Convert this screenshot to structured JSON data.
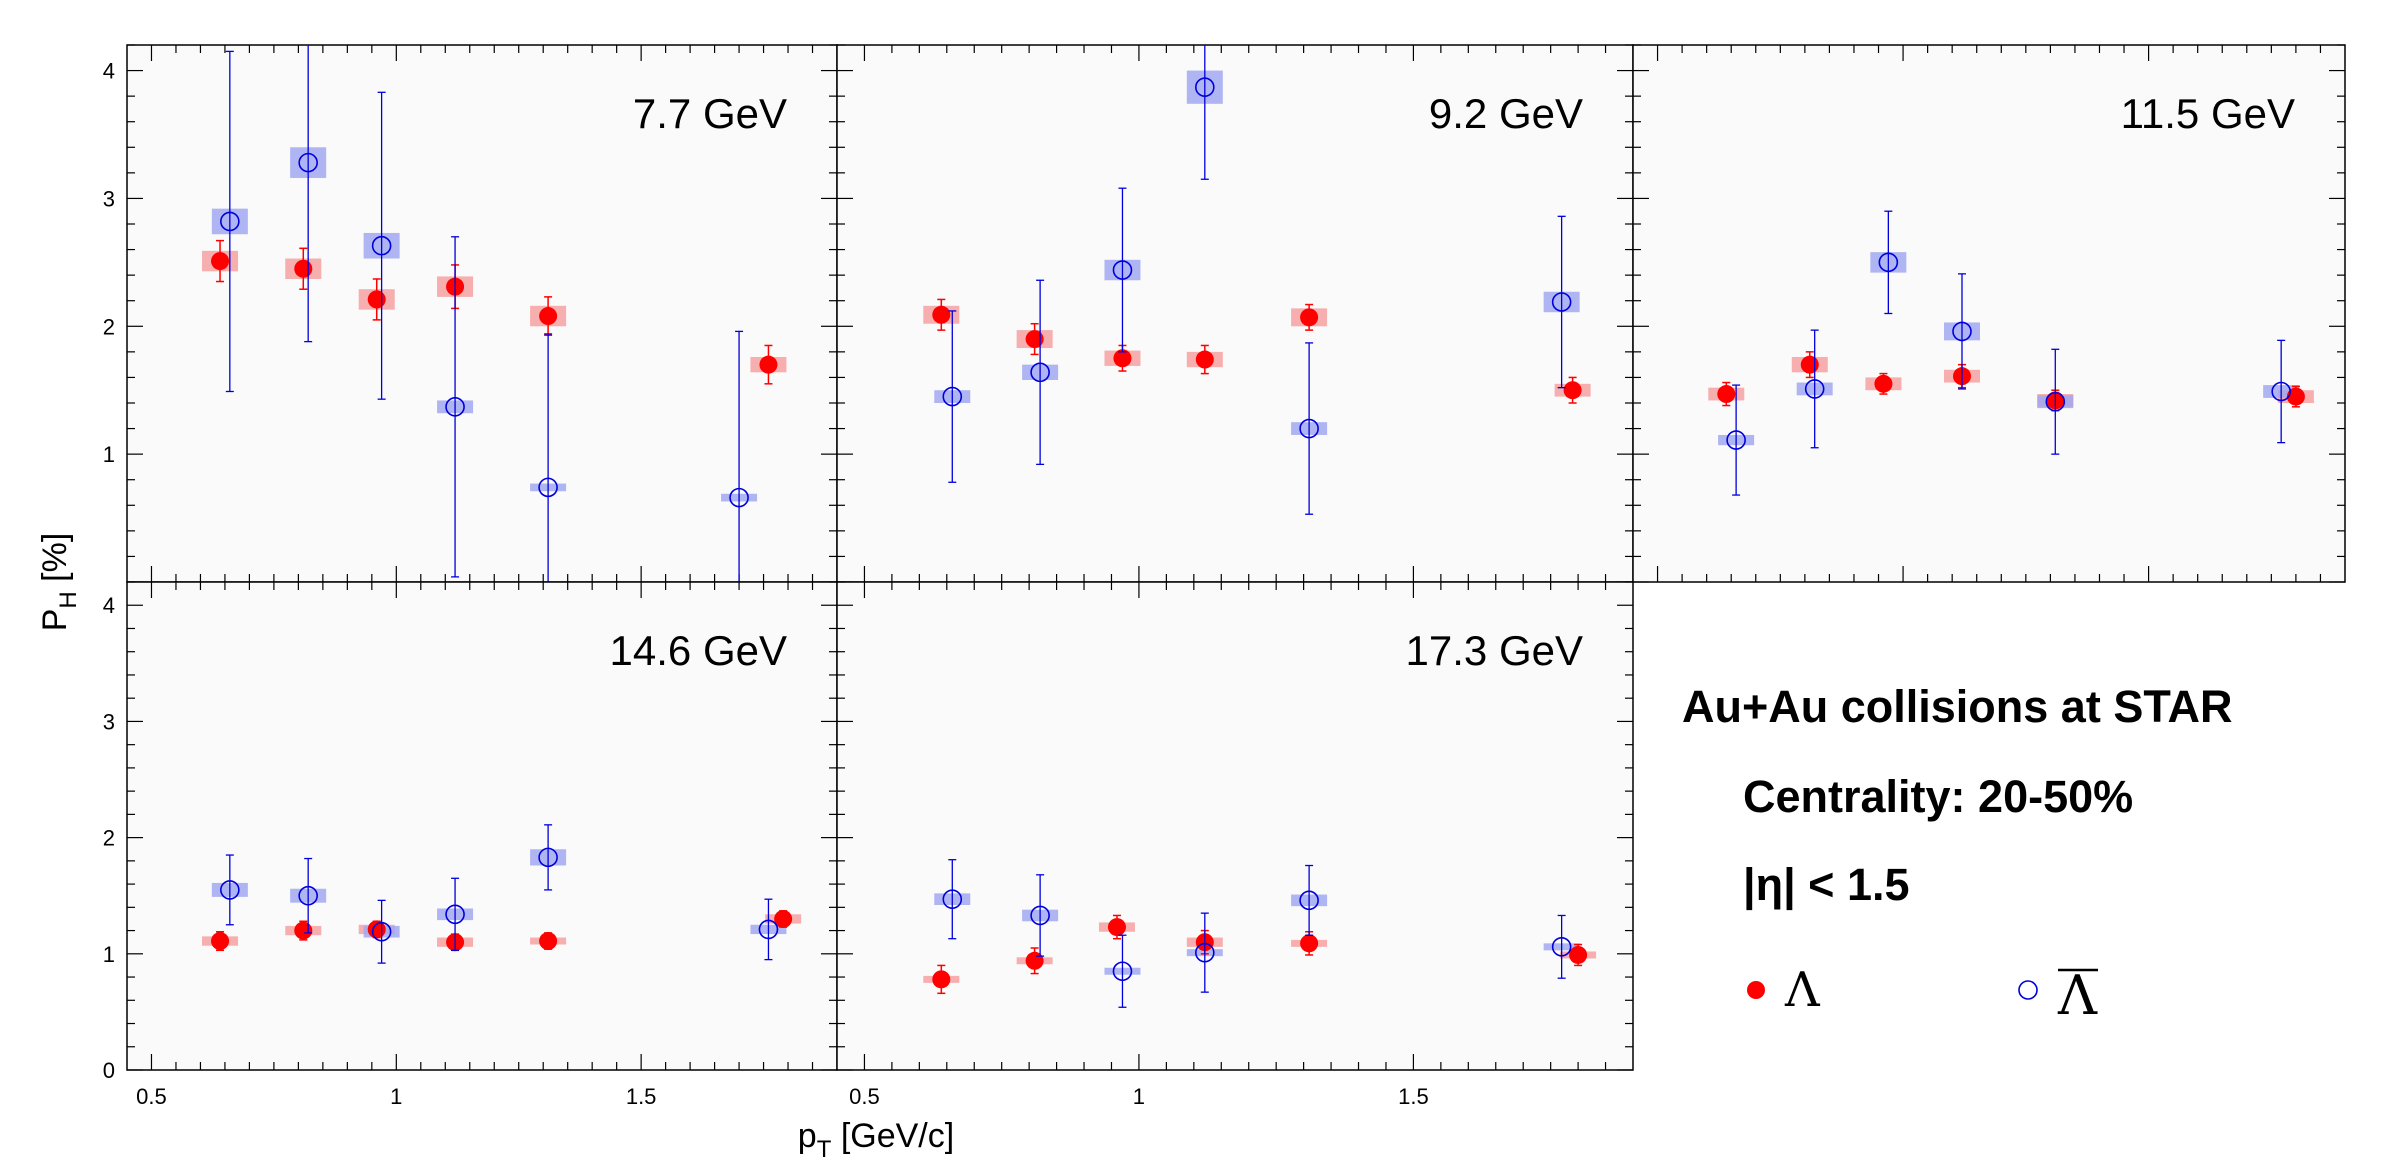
{
  "chart_data": {
    "type": "scatter",
    "y_axis_label": "P",
    "y_axis_label_subscript": "H",
    "y_axis_label_unit": "[%]",
    "x_axis_label": "p",
    "x_axis_label_subscript": "T",
    "x_axis_label_unit": "[GeV/c]",
    "xlim": [
      0.45,
      1.9
    ],
    "ylim": [
      0,
      4.2
    ],
    "x_tick_labels": [
      "0.5",
      "1",
      "1.5"
    ],
    "y_tick_labels": [
      "0",
      "1",
      "2",
      "3",
      "4"
    ],
    "colors": {
      "lambda": "#ff0000",
      "lambda_bar": "#0000dd",
      "lambda_sys": "#f4a0a0",
      "lambda_bar_sys": "#a0a8f0",
      "panel_bg": "#fafafa"
    },
    "legend": {
      "system": "Au+Au collisions at STAR",
      "centrality": "Centrality: 20-50%",
      "eta_cut": "|η| < 1.5",
      "lambda_symbol": "Λ",
      "lambda_bar_symbol": "Λ"
    },
    "panels": [
      {
        "energy": "7.7 GeV",
        "lambda": [
          {
            "x": 0.64,
            "y": 2.51,
            "err": 0.16,
            "sys": 0.08
          },
          {
            "x": 0.81,
            "y": 2.45,
            "err": 0.16,
            "sys": 0.08
          },
          {
            "x": 0.96,
            "y": 2.21,
            "err": 0.16,
            "sys": 0.08
          },
          {
            "x": 1.12,
            "y": 2.31,
            "err": 0.17,
            "sys": 0.08
          },
          {
            "x": 1.31,
            "y": 2.08,
            "err": 0.15,
            "sys": 0.08
          },
          {
            "x": 1.76,
            "y": 1.7,
            "err": 0.15,
            "sys": 0.06
          }
        ],
        "lambda_bar": [
          {
            "x": 0.66,
            "y": 2.82,
            "err": 1.33,
            "sys": 0.1
          },
          {
            "x": 0.82,
            "y": 3.28,
            "err": 1.4,
            "sys": 0.12
          },
          {
            "x": 0.97,
            "y": 2.63,
            "err": 1.2,
            "sys": 0.1
          },
          {
            "x": 1.12,
            "y": 1.37,
            "err": 1.33,
            "sys": 0.05
          },
          {
            "x": 1.31,
            "y": 0.74,
            "err": 1.2,
            "sys": 0.03
          },
          {
            "x": 1.7,
            "y": 0.66,
            "err": 1.3,
            "sys": 0.03
          }
        ]
      },
      {
        "energy": "9.2 GeV",
        "lambda": [
          {
            "x": 0.64,
            "y": 2.09,
            "err": 0.12,
            "sys": 0.07
          },
          {
            "x": 0.81,
            "y": 1.9,
            "err": 0.12,
            "sys": 0.07
          },
          {
            "x": 0.97,
            "y": 1.75,
            "err": 0.1,
            "sys": 0.06
          },
          {
            "x": 1.12,
            "y": 1.74,
            "err": 0.11,
            "sys": 0.06
          },
          {
            "x": 1.31,
            "y": 2.07,
            "err": 0.1,
            "sys": 0.07
          },
          {
            "x": 1.79,
            "y": 1.5,
            "err": 0.1,
            "sys": 0.05
          }
        ],
        "lambda_bar": [
          {
            "x": 0.66,
            "y": 1.45,
            "err": 0.67,
            "sys": 0.05
          },
          {
            "x": 0.82,
            "y": 1.64,
            "err": 0.72,
            "sys": 0.06
          },
          {
            "x": 0.97,
            "y": 2.44,
            "err": 0.64,
            "sys": 0.08
          },
          {
            "x": 1.12,
            "y": 3.87,
            "err": 0.72,
            "sys": 0.13
          },
          {
            "x": 1.31,
            "y": 1.2,
            "err": 0.67,
            "sys": 0.05
          },
          {
            "x": 1.77,
            "y": 2.19,
            "err": 0.67,
            "sys": 0.08
          }
        ]
      },
      {
        "energy": "11.5 GeV",
        "lambda": [
          {
            "x": 0.64,
            "y": 1.47,
            "err": 0.09,
            "sys": 0.05
          },
          {
            "x": 0.81,
            "y": 1.7,
            "err": 0.1,
            "sys": 0.06
          },
          {
            "x": 0.96,
            "y": 1.55,
            "err": 0.08,
            "sys": 0.05
          },
          {
            "x": 1.12,
            "y": 1.61,
            "err": 0.09,
            "sys": 0.05
          },
          {
            "x": 1.31,
            "y": 1.42,
            "err": 0.08,
            "sys": 0.05
          },
          {
            "x": 1.8,
            "y": 1.45,
            "err": 0.08,
            "sys": 0.05
          }
        ],
        "lambda_bar": [
          {
            "x": 0.66,
            "y": 1.11,
            "err": 0.43,
            "sys": 0.04
          },
          {
            "x": 0.82,
            "y": 1.51,
            "err": 0.46,
            "sys": 0.05
          },
          {
            "x": 0.97,
            "y": 2.5,
            "err": 0.4,
            "sys": 0.08
          },
          {
            "x": 1.12,
            "y": 1.96,
            "err": 0.45,
            "sys": 0.07
          },
          {
            "x": 1.31,
            "y": 1.41,
            "err": 0.41,
            "sys": 0.05
          },
          {
            "x": 1.77,
            "y": 1.49,
            "err": 0.4,
            "sys": 0.05
          }
        ]
      },
      {
        "energy": "14.6 GeV",
        "lambda": [
          {
            "x": 0.64,
            "y": 1.11,
            "err": 0.08,
            "sys": 0.04
          },
          {
            "x": 0.81,
            "y": 1.2,
            "err": 0.08,
            "sys": 0.04
          },
          {
            "x": 0.96,
            "y": 1.21,
            "err": 0.07,
            "sys": 0.04
          },
          {
            "x": 1.12,
            "y": 1.1,
            "err": 0.07,
            "sys": 0.04
          },
          {
            "x": 1.31,
            "y": 1.11,
            "err": 0.07,
            "sys": 0.03
          },
          {
            "x": 1.79,
            "y": 1.3,
            "err": 0.07,
            "sys": 0.04
          }
        ],
        "lambda_bar": [
          {
            "x": 0.66,
            "y": 1.55,
            "err": 0.3,
            "sys": 0.06
          },
          {
            "x": 0.82,
            "y": 1.5,
            "err": 0.32,
            "sys": 0.06
          },
          {
            "x": 0.97,
            "y": 1.19,
            "err": 0.27,
            "sys": 0.05
          },
          {
            "x": 1.12,
            "y": 1.34,
            "err": 0.31,
            "sys": 0.05
          },
          {
            "x": 1.31,
            "y": 1.83,
            "err": 0.28,
            "sys": 0.07
          },
          {
            "x": 1.76,
            "y": 1.21,
            "err": 0.26,
            "sys": 0.04
          }
        ]
      },
      {
        "energy": "17.3 GeV",
        "lambda": [
          {
            "x": 0.64,
            "y": 0.78,
            "err": 0.12,
            "sys": 0.03
          },
          {
            "x": 0.81,
            "y": 0.94,
            "err": 0.11,
            "sys": 0.03
          },
          {
            "x": 0.96,
            "y": 1.23,
            "err": 0.1,
            "sys": 0.04
          },
          {
            "x": 1.12,
            "y": 1.1,
            "err": 0.1,
            "sys": 0.04
          },
          {
            "x": 1.31,
            "y": 1.09,
            "err": 0.1,
            "sys": 0.03
          },
          {
            "x": 1.8,
            "y": 0.99,
            "err": 0.09,
            "sys": 0.03
          }
        ],
        "lambda_bar": [
          {
            "x": 0.66,
            "y": 1.47,
            "err": 0.34,
            "sys": 0.05
          },
          {
            "x": 0.82,
            "y": 1.33,
            "err": 0.35,
            "sys": 0.05
          },
          {
            "x": 0.97,
            "y": 0.85,
            "err": 0.31,
            "sys": 0.03
          },
          {
            "x": 1.12,
            "y": 1.01,
            "err": 0.34,
            "sys": 0.03
          },
          {
            "x": 1.31,
            "y": 1.46,
            "err": 0.3,
            "sys": 0.05
          },
          {
            "x": 1.77,
            "y": 1.06,
            "err": 0.27,
            "sys": 0.03
          }
        ]
      }
    ]
  }
}
